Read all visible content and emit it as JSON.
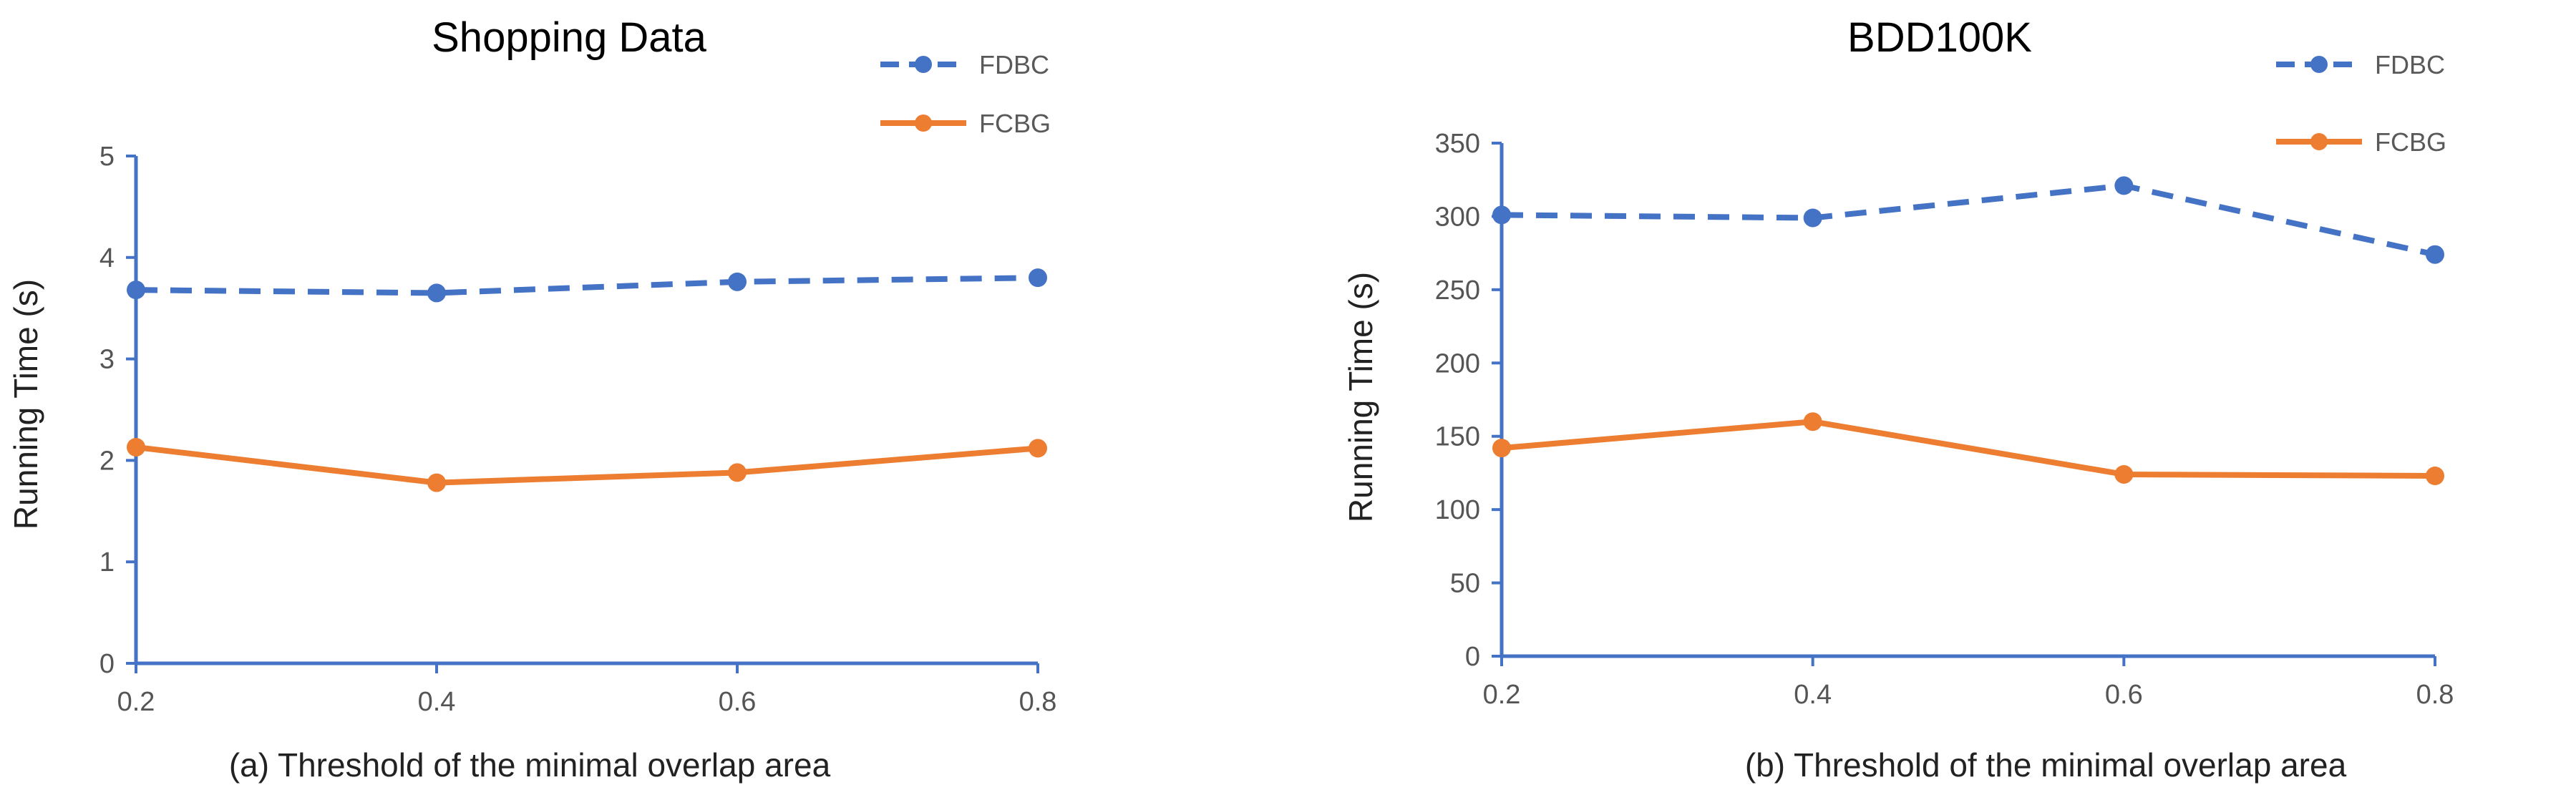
{
  "colors": {
    "FDBC": "#4472C4",
    "FCBG": "#ED7D31",
    "axis": "#4472C4"
  },
  "chart_data": [
    {
      "type": "line",
      "title": "Shopping Data",
      "xlabel": "(a) Threshold of the minimal overlap area",
      "ylabel": "Running Time (s)",
      "categories": [
        "0.2",
        "0.4",
        "0.6",
        "0.8"
      ],
      "yticks": [
        "0",
        "1",
        "2",
        "3",
        "4",
        "5"
      ],
      "ylim": [
        0,
        5
      ],
      "legend": "top-right",
      "series": [
        {
          "name": "FDBC",
          "style": "dashed",
          "values": [
            3.68,
            3.65,
            3.76,
            3.8
          ]
        },
        {
          "name": "FCBG",
          "style": "solid",
          "values": [
            2.13,
            1.78,
            1.88,
            2.12
          ]
        }
      ]
    },
    {
      "type": "line",
      "title": "BDD100K",
      "xlabel": "(b) Threshold of the minimal overlap area",
      "ylabel": "Running Time (s)",
      "categories": [
        "0.2",
        "0.4",
        "0.6",
        "0.8"
      ],
      "yticks": [
        "0",
        "50",
        "100",
        "150",
        "200",
        "250",
        "300",
        "350"
      ],
      "ylim": [
        0,
        350
      ],
      "legend": "top-right",
      "series": [
        {
          "name": "FDBC",
          "style": "dashed",
          "values": [
            301,
            299,
            321,
            274
          ]
        },
        {
          "name": "FCBG",
          "style": "solid",
          "values": [
            142,
            160,
            124,
            123
          ]
        }
      ]
    }
  ]
}
